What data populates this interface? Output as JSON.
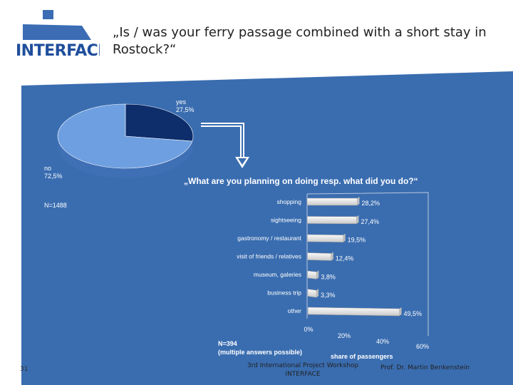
{
  "logo": {
    "text": "INTERFACE"
  },
  "title": "„Is / was your ferry passage combined with a short stay in Rostock?“",
  "pie": {
    "labels": [
      {
        "name": "yes",
        "value": "27,5%"
      },
      {
        "name": "no",
        "value": "72,5%"
      }
    ],
    "n": "N=1488"
  },
  "question2": "„What are you planning on doing resp. what did you do?“",
  "bar_footnote": {
    "line1": "N=394",
    "line2": "(multiple answers possible)"
  },
  "footer": {
    "page": "31",
    "event_line1": "3rd International Project Workshop",
    "event_line2": "INTERFACE",
    "author": "Prof. Dr. Martin Benkenstein"
  },
  "colors": {
    "panel": "#3a6db0",
    "pie_yes": "#0d2d6b",
    "pie_no": "#6e9fe0",
    "bar": "#e4e4e4"
  },
  "chart_data": [
    {
      "type": "pie",
      "categories": [
        "yes",
        "no"
      ],
      "values": [
        27.5,
        72.5
      ],
      "value_labels": [
        "27,5%",
        "72,5%"
      ]
    },
    {
      "type": "bar",
      "orientation": "horizontal",
      "categories": [
        "shopping",
        "sightseeing",
        "gastronomy / restaurant",
        "visit of friends / relatives",
        "museum, galeries",
        "business trip",
        "other"
      ],
      "values": [
        28.2,
        27.4,
        19.5,
        12.4,
        3.8,
        3.3,
        49.5
      ],
      "value_labels": [
        "28,2%",
        "27,4%",
        "19,5%",
        "12,4%",
        "3,8%",
        "3,3%",
        "49,5%"
      ],
      "xlabel": "share of passengers",
      "xticks": [
        "0%",
        "20%",
        "40%",
        "60%"
      ],
      "xlim": [
        0,
        60
      ]
    }
  ]
}
